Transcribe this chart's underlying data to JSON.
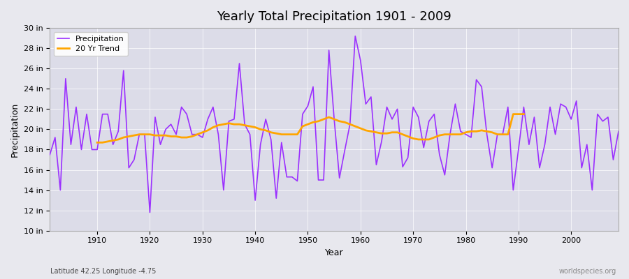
{
  "title": "Yearly Total Precipitation 1901 - 2009",
  "xlabel": "Year",
  "ylabel": "Precipitation",
  "subtitle_lat_lon": "Latitude 42.25 Longitude -4.75",
  "watermark": "worldspecies.org",
  "precip_color": "#9B30FF",
  "trend_color": "#FFA500",
  "bg_color": "#E8E8EE",
  "plot_bg_color": "#DCDCE8",
  "ylim": [
    10,
    30
  ],
  "yticks": [
    10,
    12,
    14,
    16,
    18,
    20,
    22,
    24,
    26,
    28,
    30
  ],
  "ytick_labels": [
    "10 in",
    "12 in",
    "14 in",
    "16 in",
    "18 in",
    "20 in",
    "22 in",
    "24 in",
    "26 in",
    "28 in",
    "30 in"
  ],
  "xticks": [
    1910,
    1920,
    1930,
    1940,
    1950,
    1960,
    1970,
    1980,
    1990,
    2000
  ],
  "years": [
    1901,
    1902,
    1903,
    1904,
    1905,
    1906,
    1907,
    1908,
    1909,
    1910,
    1911,
    1912,
    1913,
    1914,
    1915,
    1916,
    1917,
    1918,
    1919,
    1920,
    1921,
    1922,
    1923,
    1924,
    1925,
    1926,
    1927,
    1928,
    1929,
    1930,
    1931,
    1932,
    1933,
    1934,
    1935,
    1936,
    1937,
    1938,
    1939,
    1940,
    1941,
    1942,
    1943,
    1944,
    1945,
    1946,
    1947,
    1948,
    1949,
    1950,
    1951,
    1952,
    1953,
    1954,
    1955,
    1956,
    1957,
    1958,
    1959,
    1960,
    1961,
    1962,
    1963,
    1964,
    1965,
    1966,
    1967,
    1968,
    1969,
    1970,
    1971,
    1972,
    1973,
    1974,
    1975,
    1976,
    1977,
    1978,
    1979,
    1980,
    1981,
    1982,
    1983,
    1984,
    1985,
    1986,
    1987,
    1988,
    1989,
    1990,
    1991,
    1992,
    1993,
    1994,
    1995,
    1996,
    1997,
    1998,
    1999,
    2000,
    2001,
    2002,
    2003,
    2004,
    2005,
    2006,
    2007,
    2008,
    2009
  ],
  "precip": [
    17.5,
    19.2,
    14.0,
    25.0,
    18.5,
    22.2,
    18.0,
    21.5,
    18.0,
    18.0,
    21.5,
    21.5,
    18.5,
    19.8,
    25.8,
    16.2,
    17.0,
    19.5,
    19.5,
    11.8,
    21.2,
    18.5,
    20.0,
    20.5,
    19.5,
    22.2,
    21.5,
    19.5,
    19.5,
    19.2,
    21.0,
    22.2,
    19.5,
    14.0,
    20.8,
    21.0,
    26.5,
    20.5,
    19.5,
    13.0,
    18.5,
    21.0,
    19.0,
    13.2,
    18.7,
    15.3,
    15.3,
    14.9,
    21.5,
    22.3,
    24.2,
    15.0,
    15.0,
    27.8,
    21.0,
    15.2,
    17.9,
    20.5,
    29.2,
    26.8,
    22.5,
    23.2,
    16.5,
    18.8,
    22.2,
    21.0,
    22.0,
    16.3,
    17.2,
    22.2,
    21.2,
    18.2,
    20.8,
    21.5,
    17.5,
    15.5,
    19.5,
    22.5,
    19.8,
    19.5,
    19.2,
    24.9,
    24.2,
    19.5,
    16.2,
    19.5,
    19.5,
    22.2,
    14.0,
    18.0,
    22.2,
    18.5,
    21.2,
    16.2,
    18.5,
    22.2,
    19.5,
    22.5,
    22.2,
    21.0,
    22.8,
    16.2,
    18.5,
    14.0,
    21.5,
    20.8,
    21.2,
    17.0,
    19.8
  ],
  "trend_start_year": 1910,
  "trend": [
    18.7,
    18.7,
    18.8,
    18.9,
    19.0,
    19.2,
    19.3,
    19.4,
    19.5,
    19.5,
    19.5,
    19.4,
    19.4,
    19.4,
    19.3,
    19.3,
    19.2,
    19.2,
    19.3,
    19.5,
    19.7,
    19.9,
    20.2,
    20.4,
    20.5,
    20.6,
    20.5,
    20.5,
    20.4,
    20.3,
    20.2,
    20.0,
    19.9,
    19.7,
    19.6,
    19.5,
    19.5,
    19.5,
    19.5,
    20.3,
    20.5,
    20.7,
    20.8,
    21.0,
    21.2,
    21.0,
    20.8,
    20.7,
    20.5,
    20.3,
    20.1,
    19.9,
    19.8,
    19.7,
    19.6,
    19.6,
    19.7,
    19.7,
    19.5,
    19.3,
    19.1,
    19.0,
    19.0,
    19.0,
    19.2,
    19.4,
    19.5,
    19.5,
    19.5,
    19.5,
    19.7,
    19.8,
    19.8,
    19.9,
    19.8,
    19.7,
    19.5,
    19.5,
    19.5,
    21.5,
    21.5,
    21.5
  ]
}
